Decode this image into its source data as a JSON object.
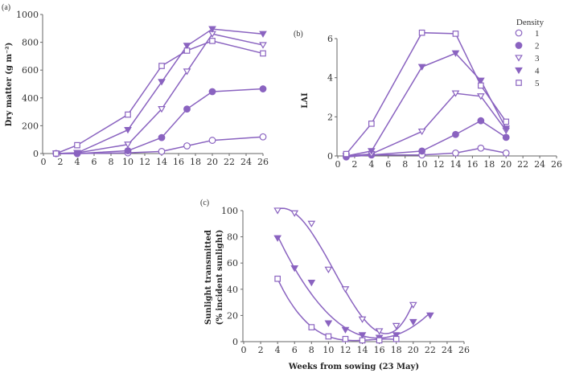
{
  "color": "#8a63c0",
  "legend": {
    "title": "Density",
    "entries": [
      {
        "label": "1",
        "marker": "circle-open"
      },
      {
        "label": "2",
        "marker": "circle-filled"
      },
      {
        "label": "3",
        "marker": "triangle-down-open"
      },
      {
        "label": "4",
        "marker": "triangle-down-filled"
      },
      {
        "label": "5",
        "marker": "square-open"
      }
    ]
  },
  "chart_data": [
    {
      "id": "a",
      "panel_label": "(a)",
      "type": "line",
      "title": "",
      "xlabel": "",
      "ylabel": "Dry matter (g m⁻²)",
      "xlim": [
        0,
        26
      ],
      "ylim": [
        0,
        1000
      ],
      "xticks": [
        0,
        2,
        4,
        6,
        8,
        10,
        12,
        14,
        16,
        18,
        20,
        22,
        24,
        26
      ],
      "yticks": [
        0,
        200,
        400,
        600,
        800,
        1000
      ],
      "grid": false,
      "series": [
        {
          "name": "1",
          "marker": "circle-open",
          "x": [
            1.5,
            4,
            10,
            14,
            17,
            20,
            26
          ],
          "y": [
            0,
            0,
            5,
            15,
            55,
            95,
            120
          ]
        },
        {
          "name": "2",
          "marker": "circle-filled",
          "x": [
            1.5,
            4,
            10,
            14,
            17,
            20,
            26
          ],
          "y": [
            0,
            0,
            20,
            115,
            320,
            445,
            465
          ]
        },
        {
          "name": "3",
          "marker": "triangle-down-open",
          "x": [
            1.5,
            4,
            10,
            14,
            17,
            20,
            26
          ],
          "y": [
            0,
            5,
            65,
            320,
            590,
            860,
            780
          ]
        },
        {
          "name": "4",
          "marker": "triangle-down-filled",
          "x": [
            1.5,
            4,
            10,
            14,
            17,
            20,
            26
          ],
          "y": [
            0,
            5,
            170,
            515,
            775,
            895,
            860
          ]
        },
        {
          "name": "5",
          "marker": "square-open",
          "x": [
            1.5,
            4,
            10,
            14,
            17,
            20,
            26
          ],
          "y": [
            0,
            60,
            280,
            630,
            740,
            810,
            720
          ]
        }
      ]
    },
    {
      "id": "b",
      "panel_label": "(b)",
      "type": "line",
      "title": "",
      "xlabel": "",
      "ylabel": "LAI",
      "xlim": [
        0,
        26
      ],
      "ylim": [
        0,
        6
      ],
      "xticks": [
        0,
        2,
        4,
        6,
        8,
        10,
        12,
        14,
        16,
        18,
        20,
        22,
        24,
        26
      ],
      "yticks": [
        0,
        2,
        4,
        6
      ],
      "grid": false,
      "legend_position": "top-right",
      "series": [
        {
          "name": "1",
          "marker": "circle-open",
          "x": [
            1,
            4,
            10,
            14,
            17,
            20
          ],
          "y": [
            0,
            0.05,
            0.05,
            0.15,
            0.4,
            0.15
          ]
        },
        {
          "name": "2",
          "marker": "circle-filled",
          "x": [
            1,
            4,
            10,
            14,
            17,
            20
          ],
          "y": [
            -0.05,
            0.05,
            0.25,
            1.1,
            1.8,
            0.95
          ]
        },
        {
          "name": "3",
          "marker": "triangle-down-open",
          "x": [
            1,
            4,
            10,
            14,
            17,
            20
          ],
          "y": [
            0,
            0.1,
            1.25,
            3.2,
            3.05,
            1.3
          ]
        },
        {
          "name": "4",
          "marker": "triangle-down-filled",
          "x": [
            1,
            4,
            10,
            14,
            17,
            20
          ],
          "y": [
            0,
            0.25,
            4.55,
            5.25,
            3.85,
            1.4
          ]
        },
        {
          "name": "5",
          "marker": "square-open",
          "x": [
            1,
            4,
            10,
            14,
            17,
            20
          ],
          "y": [
            0.1,
            1.65,
            6.3,
            6.25,
            3.6,
            1.75
          ]
        }
      ]
    },
    {
      "id": "c",
      "panel_label": "(c)",
      "type": "scatter",
      "title": "",
      "xlabel": "Weeks from sowing (23 May)",
      "ylabel": "Sunlight transmitted",
      "ylabel2": "(% incident sunlight)",
      "xlim": [
        0,
        26
      ],
      "ylim": [
        0,
        100
      ],
      "xticks": [
        0,
        2,
        4,
        6,
        8,
        10,
        12,
        14,
        16,
        18,
        20,
        22,
        24,
        26
      ],
      "yticks": [
        0,
        20,
        40,
        60,
        80,
        100
      ],
      "grid": false,
      "fitted_curves": true,
      "series": [
        {
          "name": "3",
          "marker": "triangle-down-open",
          "x": [
            4,
            6,
            8,
            10,
            12,
            14,
            16,
            18,
            20
          ],
          "y": [
            100,
            98,
            90,
            55,
            40,
            17,
            8,
            12,
            28
          ]
        },
        {
          "name": "4",
          "marker": "triangle-down-filled",
          "x": [
            4,
            6,
            8,
            10,
            12,
            14,
            16,
            18,
            20,
            22
          ],
          "y": [
            79,
            56,
            45,
            14,
            9,
            5,
            3,
            5,
            15,
            20
          ]
        },
        {
          "name": "5",
          "marker": "square-open",
          "x": [
            4,
            8,
            10,
            12,
            14,
            16,
            18
          ],
          "y": [
            48,
            11,
            4,
            2,
            1,
            1,
            2
          ]
        }
      ]
    }
  ]
}
